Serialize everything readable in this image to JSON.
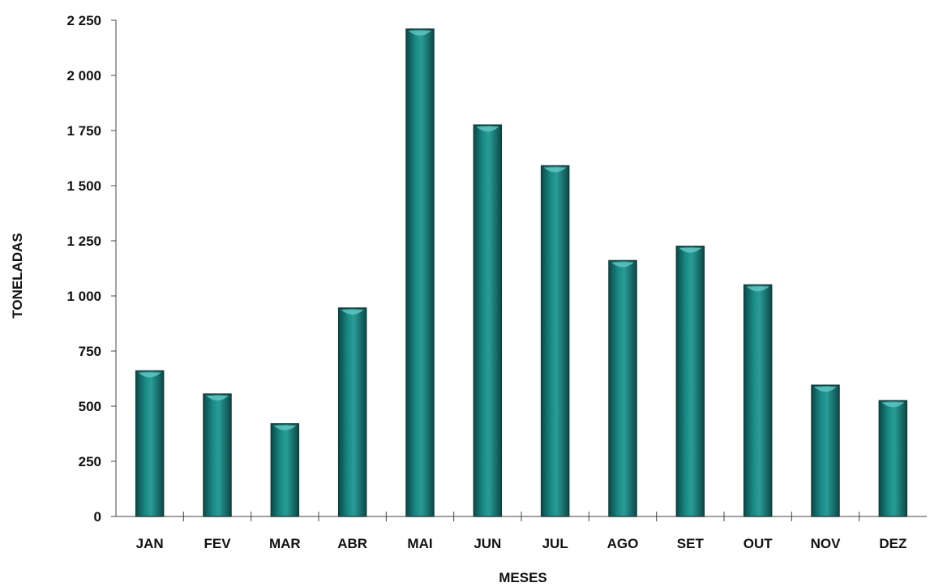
{
  "chart_data": {
    "type": "bar",
    "title": "",
    "xlabel": "MESES",
    "ylabel": "TONELADAS",
    "ylim": [
      0,
      2250
    ],
    "yticks": [
      0,
      250,
      500,
      750,
      1000,
      1250,
      1500,
      1750,
      2000,
      2250
    ],
    "ytick_labels": [
      "0",
      "250",
      "500",
      "750",
      "1 000",
      "1 250",
      "1 500",
      "1 750",
      "2 000",
      "2 250"
    ],
    "categories": [
      "JAN",
      "FEV",
      "MAR",
      "ABR",
      "MAI",
      "JUN",
      "JUL",
      "AGO",
      "SET",
      "OUT",
      "NOV",
      "DEZ"
    ],
    "values": [
      660,
      555,
      420,
      945,
      2210,
      1775,
      1590,
      1160,
      1225,
      1050,
      595,
      525
    ],
    "grid": false,
    "legend": "none",
    "bar_color": "#157d7a",
    "bar_highlight": "#5fc4c0",
    "bar_outline": "#0f3d3c"
  }
}
